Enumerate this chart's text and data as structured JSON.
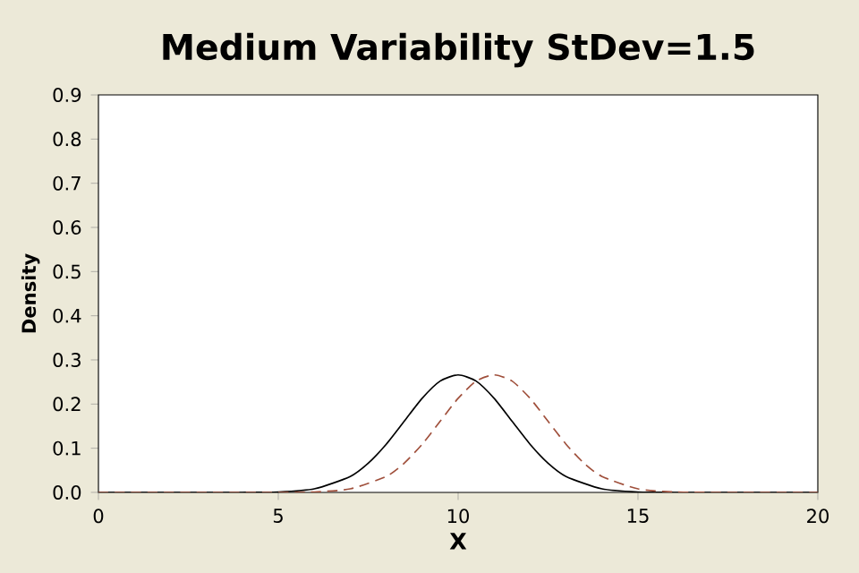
{
  "chart_data": {
    "type": "line",
    "title": "Medium Variability StDev=1.5",
    "xlabel": "X",
    "ylabel": "Density",
    "xlim": [
      0,
      20
    ],
    "ylim": [
      0,
      0.9
    ],
    "xticks": [
      0,
      5,
      10,
      15,
      20
    ],
    "yticks": [
      {
        "value": 0,
        "label": "0.0"
      },
      0.1,
      0.2,
      0.3,
      0.4,
      0.5,
      0.6,
      0.7,
      0.8,
      0.9
    ],
    "series": [
      {
        "color": "#000000",
        "line_style": "solid",
        "x": [
          0,
          4,
          5,
          6,
          7,
          7.5,
          8,
          8.5,
          9,
          9.5,
          10,
          10.5,
          11,
          11.5,
          12,
          12.5,
          13,
          14,
          15,
          16,
          20
        ],
        "values": [
          0,
          0,
          0.001,
          0.008,
          0.036,
          0.066,
          0.109,
          0.161,
          0.213,
          0.252,
          0.266,
          0.252,
          0.213,
          0.161,
          0.109,
          0.066,
          0.036,
          0.008,
          0.001,
          0,
          0
        ]
      },
      {
        "color": "#a0503c",
        "line_style": "dashed",
        "x": [
          0,
          5,
          6,
          7,
          8,
          8.5,
          9,
          9.5,
          10,
          10.5,
          11,
          11.5,
          12,
          12.5,
          13,
          13.5,
          14,
          15,
          16,
          17,
          20
        ],
        "values": [
          0,
          0,
          0.001,
          0.008,
          0.036,
          0.066,
          0.109,
          0.161,
          0.213,
          0.252,
          0.266,
          0.252,
          0.213,
          0.161,
          0.109,
          0.066,
          0.036,
          0.008,
          0.001,
          0,
          0
        ]
      }
    ]
  }
}
